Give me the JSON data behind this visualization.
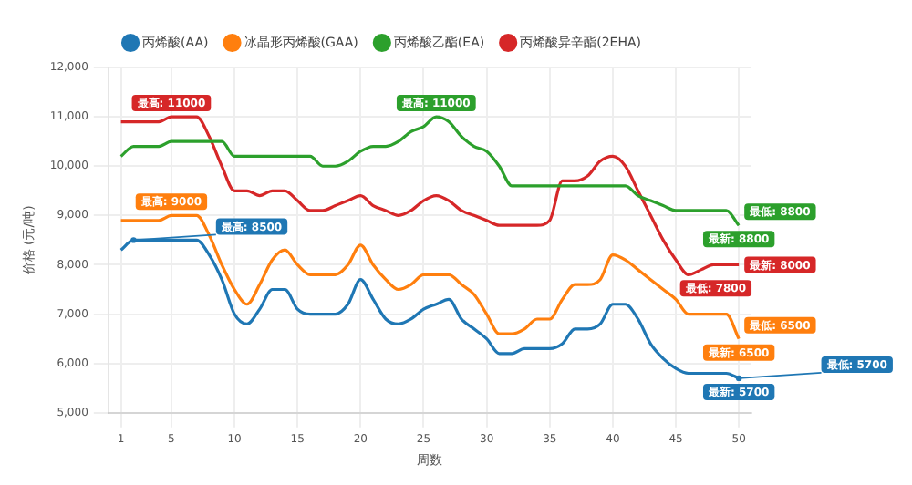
{
  "chart_data": {
    "type": "line",
    "xlabel": "周数",
    "ylabel": "价格 (元/吨)",
    "x": [
      1,
      2,
      3,
      4,
      5,
      6,
      7,
      8,
      9,
      10,
      11,
      12,
      13,
      14,
      15,
      16,
      17,
      18,
      19,
      20,
      21,
      22,
      23,
      24,
      25,
      26,
      27,
      28,
      29,
      30,
      31,
      32,
      33,
      34,
      35,
      36,
      37,
      38,
      39,
      40,
      41,
      42,
      43,
      44,
      45,
      46,
      47,
      48,
      49,
      50
    ],
    "series": [
      {
        "name": "丙烯酸(AA)",
        "color": "#1f77b4",
        "values": [
          8300,
          8500,
          8500,
          8500,
          8500,
          8500,
          8500,
          8200,
          7700,
          7000,
          6800,
          7100,
          7500,
          7500,
          7100,
          7000,
          7000,
          7000,
          7200,
          7700,
          7300,
          6900,
          6800,
          6900,
          7100,
          7200,
          7300,
          6900,
          6700,
          6500,
          6200,
          6200,
          6300,
          6300,
          6300,
          6400,
          6700,
          6700,
          6800,
          7200,
          7200,
          6900,
          6400,
          6100,
          5900,
          5800,
          5800,
          5800,
          5800,
          5700
        ]
      },
      {
        "name": "冰晶形丙烯酸(GAA)",
        "color": "#ff7f0e",
        "values": [
          8900,
          8900,
          8900,
          8900,
          9000,
          9000,
          9000,
          8600,
          8000,
          7500,
          7200,
          7600,
          8100,
          8300,
          8000,
          7800,
          7800,
          7800,
          8000,
          8400,
          8000,
          7700,
          7500,
          7600,
          7800,
          7800,
          7800,
          7600,
          7400,
          7000,
          6600,
          6600,
          6700,
          6900,
          6900,
          7300,
          7600,
          7600,
          7700,
          8200,
          8100,
          7900,
          7700,
          7500,
          7300,
          7000,
          7000,
          7000,
          7000,
          6500
        ]
      },
      {
        "name": "丙烯酸乙酯(EA)",
        "color": "#2ca02c",
        "values": [
          10200,
          10400,
          10400,
          10400,
          10500,
          10500,
          10500,
          10500,
          10500,
          10200,
          10200,
          10200,
          10200,
          10200,
          10200,
          10200,
          10000,
          10000,
          10100,
          10300,
          10400,
          10400,
          10500,
          10700,
          10800,
          11000,
          10900,
          10600,
          10400,
          10300,
          10000,
          9600,
          9600,
          9600,
          9600,
          9600,
          9600,
          9600,
          9600,
          9600,
          9600,
          9400,
          9300,
          9200,
          9100,
          9100,
          9100,
          9100,
          9100,
          8800
        ]
      },
      {
        "name": "丙烯酸异辛酯(2EHA)",
        "color": "#d62728",
        "values": [
          10900,
          10900,
          10900,
          10900,
          11000,
          11000,
          11000,
          10600,
          10000,
          9500,
          9500,
          9400,
          9500,
          9500,
          9300,
          9100,
          9100,
          9200,
          9300,
          9400,
          9200,
          9100,
          9000,
          9100,
          9300,
          9400,
          9300,
          9100,
          9000,
          8900,
          8800,
          8800,
          8800,
          8800,
          8900,
          9700,
          9700,
          9800,
          10100,
          10200,
          10000,
          9500,
          9000,
          8500,
          8100,
          7800,
          7900,
          8000,
          8000,
          8000
        ]
      }
    ],
    "annotations": [
      {
        "text": "最高: 8500",
        "x": 2,
        "y": 8500
      },
      {
        "text": "最高: 9000",
        "x": 5,
        "y": 9000
      },
      {
        "text": "最高: 11000",
        "x": 5,
        "y": 11000
      },
      {
        "text": "最高: 11000",
        "x": 26,
        "y": 11000
      },
      {
        "text": "最低: 7800",
        "x": 46,
        "y": 7800
      },
      {
        "text": "最新: 8800",
        "x": 50,
        "y": 8800
      },
      {
        "text": "最低: 8800",
        "x": 50,
        "y": 8800
      },
      {
        "text": "最新: 8000",
        "x": 50,
        "y": 8000
      },
      {
        "text": "最新: 6500",
        "x": 50,
        "y": 6500
      },
      {
        "text": "最低: 6500",
        "x": 50,
        "y": 6500
      },
      {
        "text": "最新: 5700",
        "x": 50,
        "y": 5700
      },
      {
        "text": "最低: 5700",
        "x": 50,
        "y": 5700
      }
    ],
    "xlim": [
      0,
      51
    ],
    "xticks": [
      1,
      5,
      10,
      15,
      20,
      25,
      30,
      35,
      40,
      45,
      50
    ],
    "ylim": [
      5000,
      12000
    ],
    "yticks": [
      {
        "value": 5000,
        "label": "5,000"
      },
      {
        "value": 6000,
        "label": "6,000"
      },
      {
        "value": 7000,
        "label": "7,000"
      },
      {
        "value": 8000,
        "label": "8,000"
      },
      {
        "value": 9000,
        "label": "9,000"
      },
      {
        "value": 10000,
        "label": "10,000"
      },
      {
        "value": 11000,
        "label": "11,000"
      },
      {
        "value": 12000,
        "label": "12,000"
      }
    ],
    "grid": true,
    "legend": "top",
    "marker": "none",
    "line_style": "solid"
  }
}
